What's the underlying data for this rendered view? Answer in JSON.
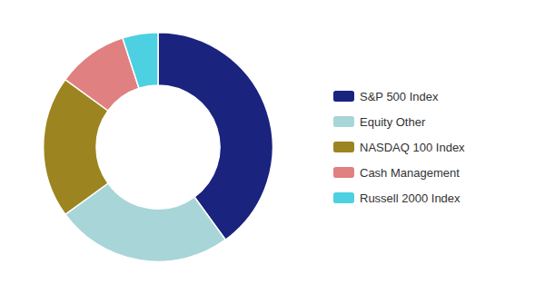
{
  "chart_data": {
    "type": "pie",
    "categories": [
      "S&P 500 Index",
      "Equity Other",
      "NASDAQ 100 Index",
      "Cash Management",
      "Russell 2000 Index"
    ],
    "values": [
      40,
      25,
      20,
      10,
      5
    ],
    "colors": [
      "#1a237e",
      "#a8d5d8",
      "#9c8520",
      "#e08080",
      "#4dd0e1"
    ],
    "legend": "right"
  }
}
